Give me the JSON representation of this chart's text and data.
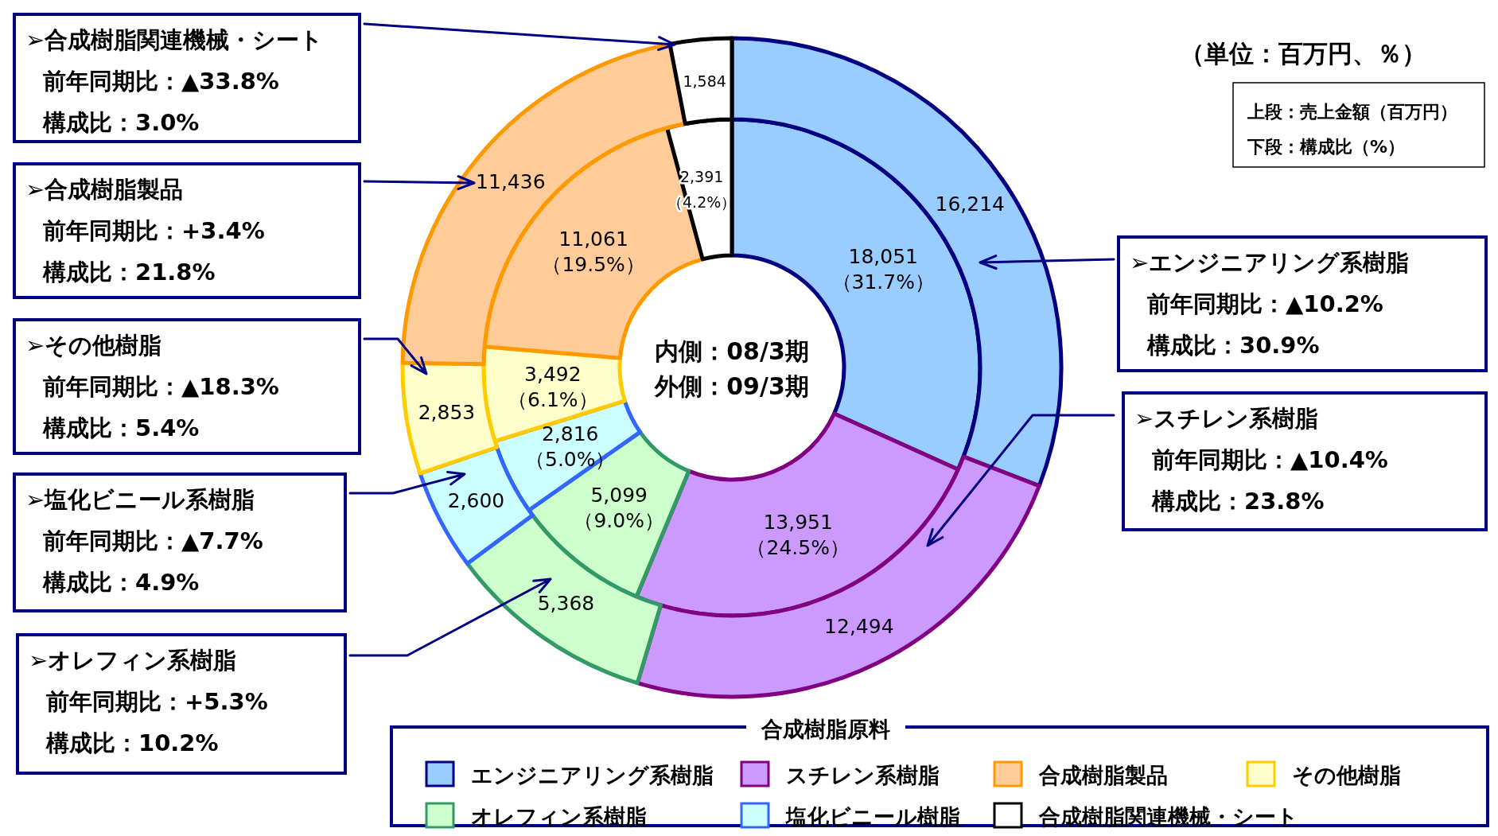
{
  "chart_data": {
    "type": "donut",
    "subtitle": "（単位：百万円、％）",
    "legend_title": "合成樹脂原料",
    "legend": "bottom",
    "categories": [
      "エンジニアリング系樹脂",
      "スチレン系樹脂",
      "オレフィン系樹脂",
      "塩化ビニール樹脂",
      "その他樹脂",
      "合成樹脂製品",
      "合成樹脂関連機械・シート"
    ],
    "colors": [
      "#99ccff",
      "#cc99ff",
      "#ccffcc",
      "#ccffff",
      "#ffffcc",
      "#ffcc99",
      "#ffffff"
    ],
    "series": [
      {
        "values": [
          18051,
          13951,
          5099,
          2816,
          3492,
          11061,
          2391
        ],
        "value_labels": [
          "18,051\n（31.7%）",
          "13,951\n（24.5%）",
          "5,099\n（9.0%）",
          "2,816\n（5.0%）",
          "3,492\n（6.1%）",
          "11,061\n（19.5%）",
          "2,391\n（4.2%）"
        ]
      },
      {
        "values": [
          16214,
          12494,
          5368,
          2600,
          2853,
          11436,
          1584
        ],
        "value_labels": [
          "16,214",
          "12,494",
          "5,368",
          "2,600",
          "2,853",
          "11,436",
          "1,584"
        ]
      }
    ],
    "annotations": [
      "内側：08/3期",
      "外側：09/3期",
      "上段：売上金額（百万円）",
      "下段：構成比（%）",
      "➢エンジニアリング系樹脂",
      "前年同期比：▲10.2%",
      "構成比：30.9%",
      "➢スチレン系樹脂",
      "前年同期比：▲10.4%",
      "構成比：23.8%",
      "➢オレフィン系樹脂",
      "前年同期比：+5.3%",
      "構成比：10.2%",
      "➢塩化ビニール系樹脂",
      "前年同期比：▲7.7%",
      "構成比：4.9%",
      "➢その他樹脂",
      "前年同期比：▲18.3%",
      "構成比：5.4%",
      "➢合成樹脂製品",
      "前年同期比：+3.4%",
      "構成比：21.8%",
      "➢合成樹脂関連機械・シート",
      "前年同期比：▲33.8%",
      "構成比：3.0%"
    ]
  }
}
